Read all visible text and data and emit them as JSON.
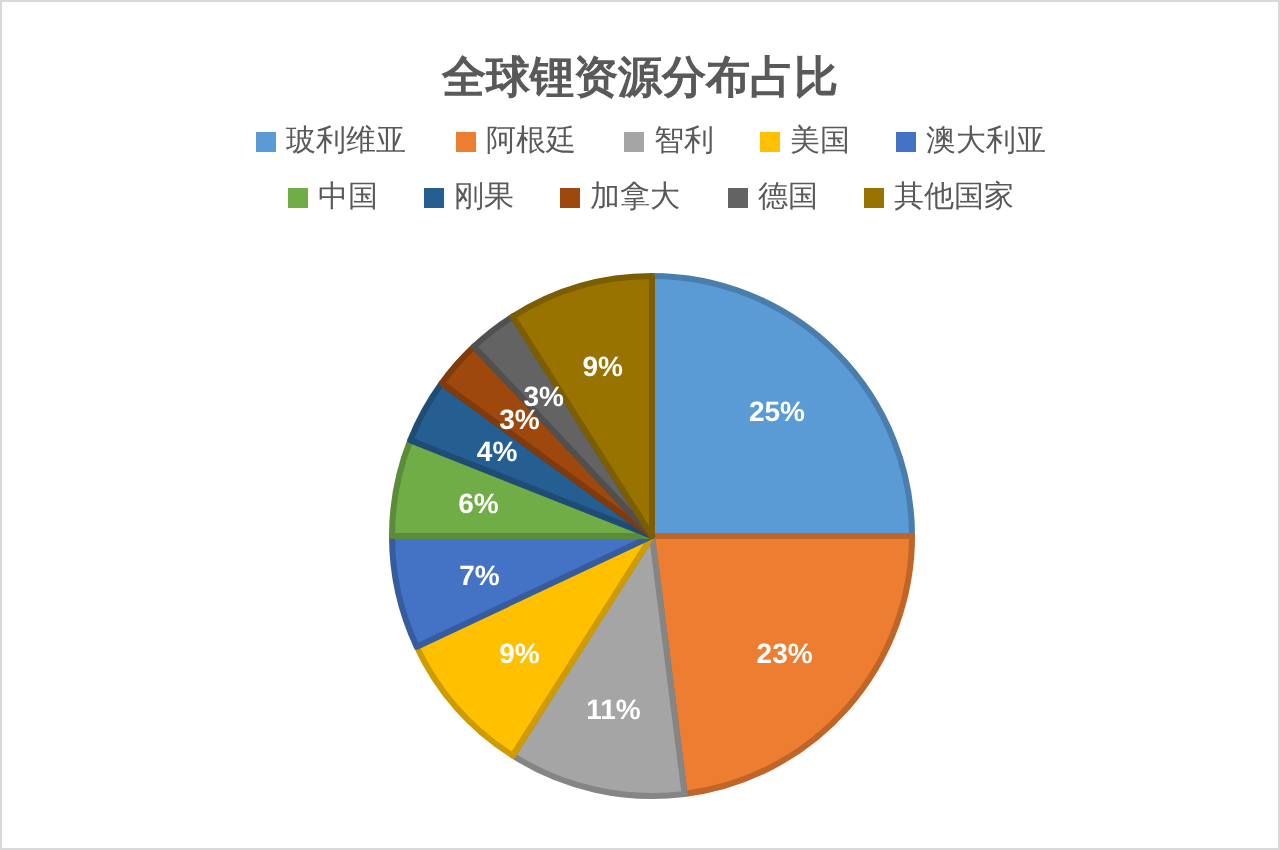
{
  "chart_data": {
    "type": "pie",
    "title": "全球锂资源分布占比",
    "categories": [
      "玻利维亚",
      "阿根廷",
      "智利",
      "美国",
      "澳大利亚",
      "中国",
      "刚果",
      "加拿大",
      "德国",
      "其他国家"
    ],
    "values": [
      25,
      23,
      11,
      9,
      7,
      6,
      4,
      3,
      3,
      9
    ],
    "colors": [
      "#5b9bd5",
      "#ed7d31",
      "#a5a5a5",
      "#ffc000",
      "#4472c4",
      "#70ad47",
      "#255e91",
      "#9e480e",
      "#636363",
      "#997300"
    ],
    "value_labels": [
      "25%",
      "23%",
      "11%",
      "9%",
      "7%",
      "6%",
      "4%",
      "3%",
      "3%",
      "9%"
    ],
    "legend": "top"
  }
}
